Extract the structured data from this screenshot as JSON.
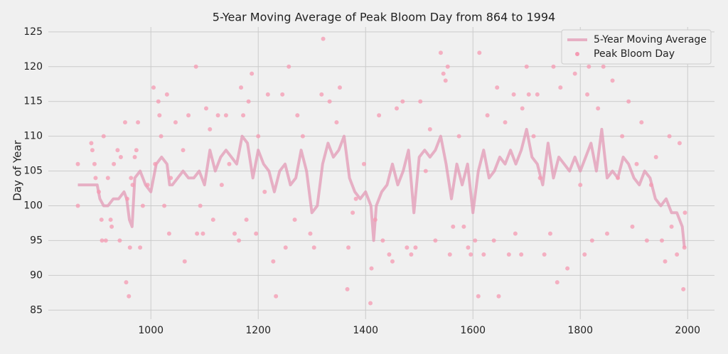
{
  "chart_data": {
    "type": "line_scatter",
    "title": "5-Year Moving Average of Peak Bloom Day from 864 to 1994",
    "y_label": "Day of Year",
    "xlim": [
      809,
      2050
    ],
    "ylim": [
      83.7,
      125.7
    ],
    "xticks": [
      1000,
      1200,
      1400,
      1600,
      1800,
      2000
    ],
    "yticks": [
      85,
      90,
      95,
      100,
      105,
      110,
      115,
      120,
      125
    ],
    "grid": true,
    "legend": "upper right",
    "series": [
      {
        "name": "5-Year Moving Average",
        "kind": "line",
        "color": "#e39ab6",
        "x": [
          864,
          900,
          905,
          912,
          920,
          930,
          940,
          950,
          955,
          960,
          965,
          970,
          980,
          990,
          1000,
          1010,
          1020,
          1030,
          1035,
          1040,
          1050,
          1060,
          1070,
          1080,
          1090,
          1100,
          1110,
          1120,
          1130,
          1140,
          1150,
          1160,
          1170,
          1180,
          1190,
          1200,
          1210,
          1220,
          1230,
          1240,
          1250,
          1260,
          1270,
          1280,
          1290,
          1300,
          1310,
          1320,
          1330,
          1340,
          1350,
          1360,
          1370,
          1380,
          1390,
          1400,
          1410,
          1415,
          1420,
          1430,
          1440,
          1450,
          1460,
          1470,
          1480,
          1490,
          1500,
          1510,
          1520,
          1530,
          1540,
          1550,
          1560,
          1570,
          1580,
          1590,
          1600,
          1610,
          1620,
          1630,
          1640,
          1650,
          1660,
          1670,
          1680,
          1690,
          1700,
          1710,
          1720,
          1730,
          1740,
          1750,
          1760,
          1770,
          1780,
          1790,
          1800,
          1810,
          1820,
          1830,
          1840,
          1850,
          1860,
          1870,
          1880,
          1890,
          1900,
          1910,
          1920,
          1930,
          1940,
          1950,
          1960,
          1970,
          1980,
          1990,
          1994
        ],
        "values": [
          103,
          103,
          101,
          100,
          100,
          101,
          101,
          102,
          101,
          98,
          97,
          104,
          105,
          103,
          102,
          106,
          107,
          106,
          103,
          103,
          104,
          105,
          104,
          104,
          105,
          103,
          108,
          105,
          107,
          108,
          107,
          106,
          110,
          109,
          104,
          108,
          106,
          105,
          102,
          105,
          106,
          103,
          104,
          108,
          105,
          99,
          100,
          106,
          109,
          107,
          108,
          110,
          104,
          102,
          101,
          102,
          100,
          95,
          100,
          102,
          103,
          106,
          103,
          105,
          108,
          99,
          107,
          108,
          107,
          108,
          110,
          106,
          101,
          106,
          103,
          106,
          99,
          105,
          108,
          104,
          105,
          107,
          106,
          108,
          106,
          108,
          111,
          107,
          106,
          103,
          109,
          104,
          107,
          106,
          105,
          107,
          105,
          107,
          109,
          105,
          111,
          104,
          105,
          104,
          107,
          106,
          104,
          103,
          105,
          104,
          101,
          100,
          101,
          99,
          99,
          97,
          94
        ]
      },
      {
        "name": "Peak Bloom Day",
        "kind": "scatter",
        "color": "#f59ab2",
        "x": [
          864,
          864,
          889,
          891,
          895,
          897,
          903,
          908,
          909,
          912,
          916,
          920,
          925,
          927,
          931,
          938,
          942,
          944,
          952,
          954,
          956,
          959,
          961,
          963,
          966,
          970,
          973,
          976,
          980,
          985,
          994,
          1005,
          1008,
          1014,
          1016,
          1019,
          1025,
          1030,
          1034,
          1037,
          1046,
          1060,
          1063,
          1070,
          1084,
          1086,
          1092,
          1097,
          1103,
          1110,
          1116,
          1125,
          1132,
          1140,
          1146,
          1156,
          1164,
          1168,
          1172,
          1178,
          1182,
          1188,
          1196,
          1200,
          1212,
          1218,
          1228,
          1233,
          1245,
          1251,
          1257,
          1268,
          1273,
          1283,
          1297,
          1304,
          1318,
          1321,
          1333,
          1346,
          1352,
          1366,
          1368,
          1376,
          1382,
          1397,
          1409,
          1411,
          1418,
          1425,
          1432,
          1444,
          1450,
          1458,
          1469,
          1477,
          1485,
          1493,
          1502,
          1512,
          1520,
          1530,
          1540,
          1545,
          1549,
          1553,
          1557,
          1563,
          1574,
          1583,
          1591,
          1596,
          1604,
          1610,
          1612,
          1620,
          1627,
          1639,
          1645,
          1648,
          1660,
          1667,
          1676,
          1679,
          1690,
          1692,
          1700,
          1704,
          1713,
          1720,
          1725,
          1733,
          1744,
          1750,
          1757,
          1763,
          1776,
          1790,
          1800,
          1808,
          1813,
          1816,
          1822,
          1833,
          1843,
          1850,
          1860,
          1870,
          1878,
          1890,
          1897,
          1905,
          1914,
          1924,
          1932,
          1941,
          1952,
          1958,
          1966,
          1970,
          1980,
          1985,
          1992,
          1995,
          1994
        ],
        "values": [
          100,
          106,
          109,
          108,
          106,
          104,
          102,
          98,
          95,
          110,
          95,
          104,
          98,
          97,
          106,
          108,
          95,
          107,
          112,
          89,
          101,
          87,
          94,
          104,
          103,
          107,
          108,
          112,
          94,
          100,
          103,
          117,
          106,
          115,
          113,
          110,
          100,
          116,
          96,
          104,
          112,
          108,
          92,
          113,
          120,
          96,
          100,
          96,
          114,
          111,
          98,
          113,
          103,
          113,
          106,
          96,
          95,
          117,
          113,
          98,
          115,
          119,
          96,
          110,
          102,
          116,
          92,
          87,
          116,
          94,
          120,
          98,
          113,
          110,
          96,
          94,
          116,
          124,
          115,
          112,
          117,
          88,
          94,
          99,
          101,
          106,
          86,
          91,
          98,
          113,
          95,
          93,
          92,
          114,
          115,
          94,
          93,
          94,
          115,
          105,
          111,
          95,
          122,
          119,
          118,
          120,
          93,
          97,
          110,
          97,
          94,
          93,
          95,
          87,
          122,
          93,
          113,
          95,
          117,
          87,
          112,
          93,
          116,
          96,
          93,
          114,
          120,
          116,
          110,
          116,
          104,
          93,
          96,
          120,
          89,
          117,
          91,
          119,
          103,
          93,
          116,
          120,
          95,
          114,
          120,
          96,
          118,
          104,
          110,
          115,
          97,
          106,
          112,
          95,
          103,
          107,
          95,
          92,
          110,
          97,
          93,
          109,
          88,
          99,
          94
        ]
      }
    ]
  }
}
